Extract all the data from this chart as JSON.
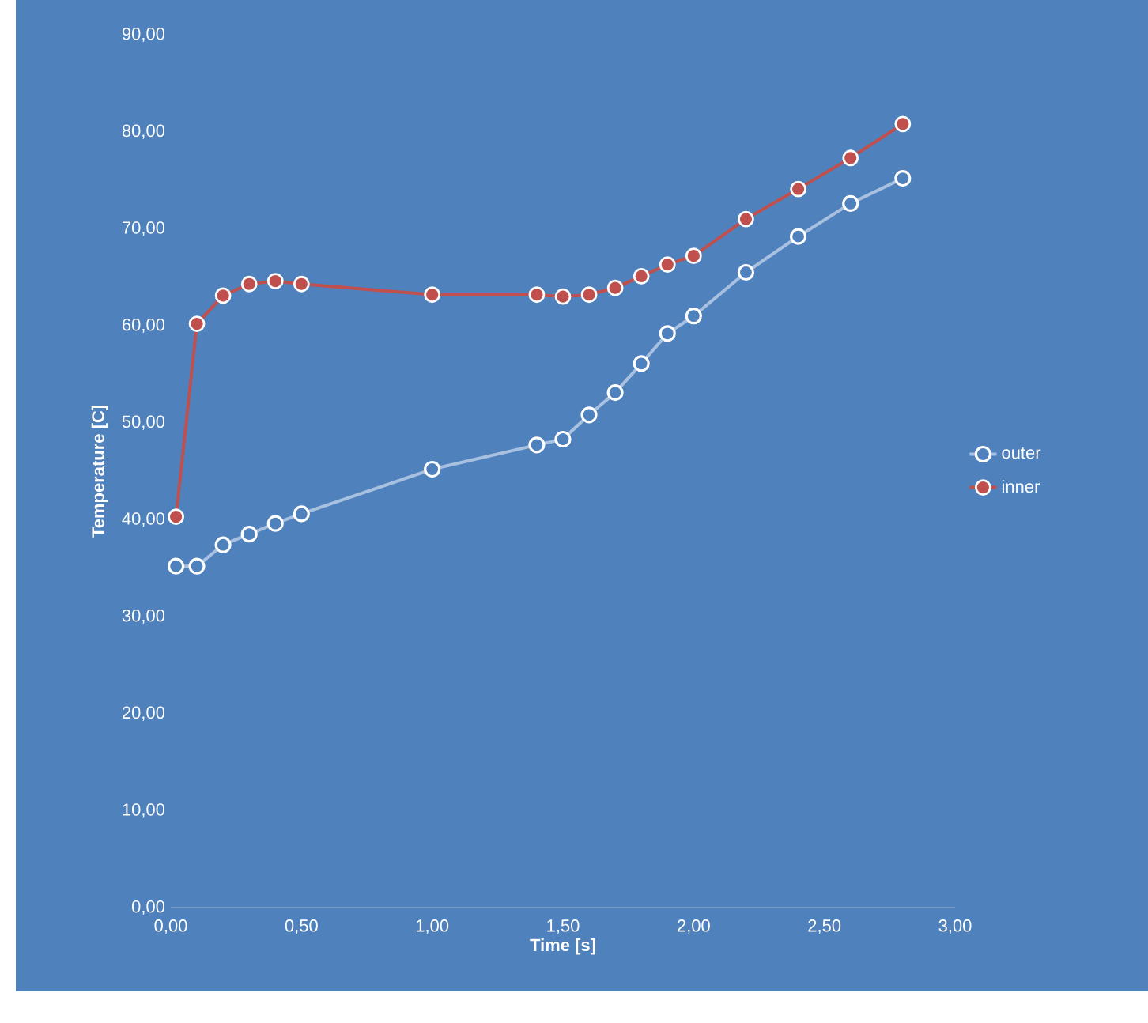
{
  "chart_data": {
    "type": "line",
    "xlabel": "Time [s]",
    "ylabel": "Temperature [C]",
    "x": [
      0.02,
      0.1,
      0.2,
      0.3,
      0.4,
      0.5,
      1.0,
      1.4,
      1.5,
      1.6,
      1.7,
      1.8,
      1.9,
      2.0,
      2.2,
      2.4,
      2.6,
      2.8
    ],
    "series": [
      {
        "name": "outer",
        "color": "#ffffff",
        "values": [
          35.2,
          35.2,
          37.4,
          38.5,
          39.6,
          40.6,
          45.2,
          47.7,
          48.3,
          50.8,
          53.1,
          56.1,
          59.2,
          61.0,
          65.5,
          69.2,
          72.6,
          75.2
        ]
      },
      {
        "name": "inner",
        "color": "#c0504d",
        "values": [
          40.3,
          60.2,
          63.1,
          64.3,
          64.6,
          64.3,
          63.2,
          63.2,
          63.0,
          63.2,
          63.9,
          65.1,
          66.3,
          67.2,
          71.0,
          74.1,
          77.3,
          80.8
        ]
      }
    ],
    "xlim": [
      0,
      3
    ],
    "ylim": [
      0,
      90
    ],
    "xticks": [
      {
        "value": 0,
        "label": "0,00"
      },
      {
        "value": 0.5,
        "label": "0,50"
      },
      {
        "value": 1,
        "label": "1,00"
      },
      {
        "value": 1.5,
        "label": "1,50"
      },
      {
        "value": 2,
        "label": "2,00"
      },
      {
        "value": 2.5,
        "label": "2,50"
      },
      {
        "value": 3,
        "label": "3,00"
      }
    ],
    "yticks": [
      {
        "value": 0,
        "label": "0,00"
      },
      {
        "value": 10,
        "label": "10,00"
      },
      {
        "value": 20,
        "label": "20,00"
      },
      {
        "value": 30,
        "label": "30,00"
      },
      {
        "value": 40,
        "label": "40,00"
      },
      {
        "value": 50,
        "label": "50,00"
      },
      {
        "value": 60,
        "label": "60,00"
      },
      {
        "value": 70,
        "label": "70,00"
      },
      {
        "value": 80,
        "label": "80,00"
      },
      {
        "value": 90,
        "label": "90,00"
      }
    ],
    "grid": false,
    "legend": "right",
    "marker": "circle",
    "line_style": "solid"
  }
}
